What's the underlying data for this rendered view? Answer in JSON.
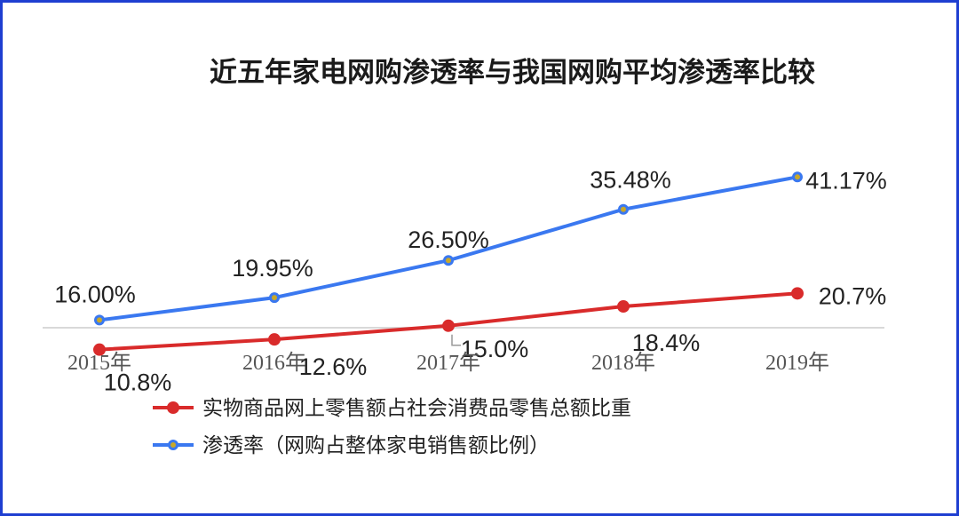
{
  "chart_data": {
    "type": "line",
    "title": "近五年家电网购渗透率与我国网购平均渗透率比较",
    "categories": [
      "2015年",
      "2016年",
      "2017年",
      "2018年",
      "2019年"
    ],
    "series": [
      {
        "name": "渗透率（网购占整体家电销售额比例）",
        "values": [
          16.0,
          19.95,
          26.5,
          35.48,
          41.17
        ],
        "labels": [
          "16.00%",
          "19.95%",
          "26.50%",
          "35.48%",
          "41.17%"
        ],
        "color": "#3a78f0",
        "marker_color": "#c8a82a"
      },
      {
        "name": "实物商品网上零售额占社会消费品零售总额比重",
        "values": [
          10.8,
          12.6,
          15.0,
          18.4,
          20.7
        ],
        "labels": [
          "10.8%",
          "12.6%",
          "15.0%",
          "18.4%",
          "20.7%"
        ],
        "color": "#d92b2b",
        "marker_color": "#d92b2b"
      }
    ],
    "legend": [
      "实物商品网上零售额占社会消费品零售总额比重",
      "渗透率（网购占整体家电销售额比例）"
    ],
    "grid": false,
    "legend_position": "bottom"
  }
}
